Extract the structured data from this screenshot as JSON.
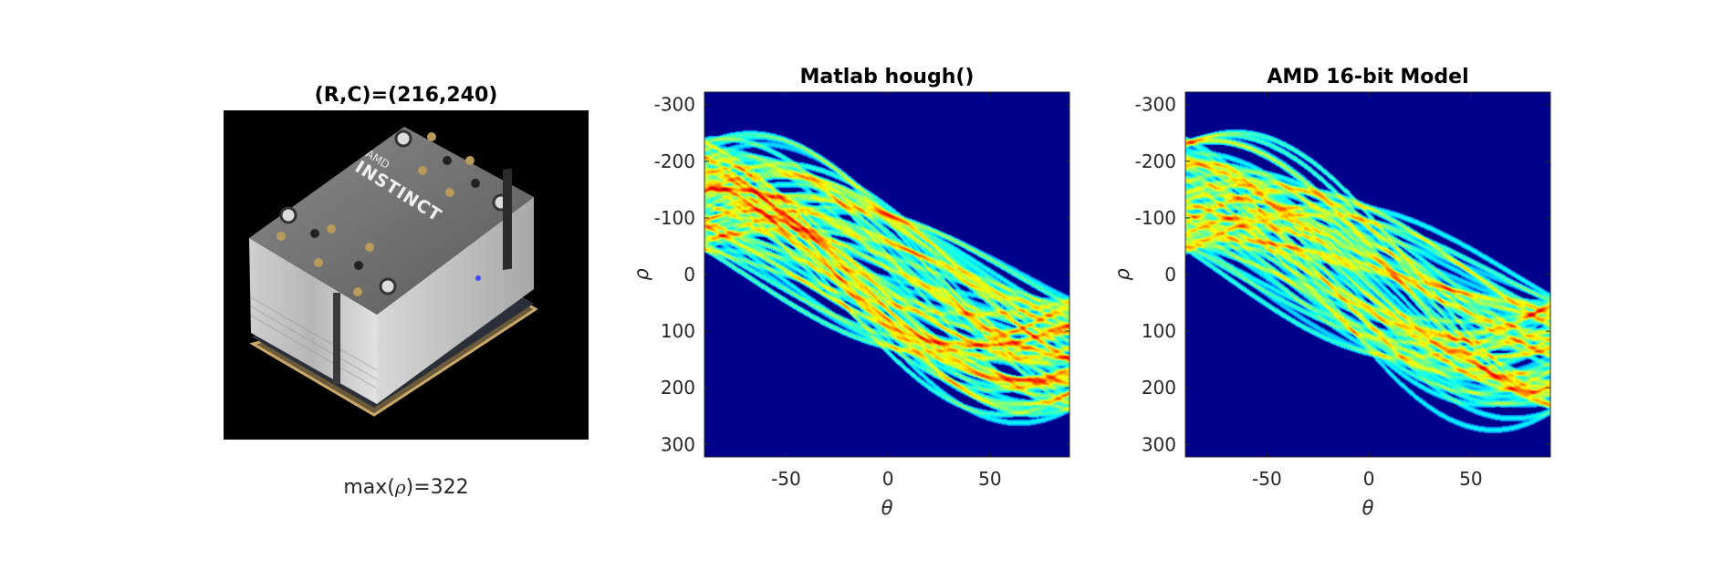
{
  "image_panel": {
    "title": "(R,C)=(216,240)",
    "caption_prefix": "max(",
    "caption_symbol": "ρ",
    "caption_suffix": ")=322",
    "brand_top": "AMD",
    "brand_main": "INSTINCT",
    "marker_color": "#3b4bff"
  },
  "colors": {
    "background": "#00008b",
    "colormap": [
      "#00008f",
      "#0050ff",
      "#00d8ff",
      "#7dff7a",
      "#ffe600",
      "#ff6a00",
      "#c80000",
      "#800000"
    ]
  },
  "chart_data": [
    {
      "type": "heatmap",
      "title": "Matlab hough()",
      "xlabel": "θ",
      "ylabel": "ρ",
      "xlim": [
        -90,
        89
      ],
      "ylim": [
        -322,
        322
      ],
      "y_reversed": true,
      "xticks": [
        -50,
        0,
        50
      ],
      "yticks": [
        -300,
        -200,
        -100,
        0,
        100,
        200,
        300
      ],
      "colormap": "jet"
    },
    {
      "type": "heatmap",
      "title": "AMD 16-bit Model",
      "xlabel": "θ",
      "ylabel": "ρ",
      "xlim": [
        -90,
        89
      ],
      "ylim": [
        -322,
        322
      ],
      "y_reversed": true,
      "xticks": [
        -50,
        0,
        50
      ],
      "yticks": [
        -300,
        -200,
        -100,
        0,
        100,
        200,
        300
      ],
      "colormap": "jet"
    }
  ]
}
